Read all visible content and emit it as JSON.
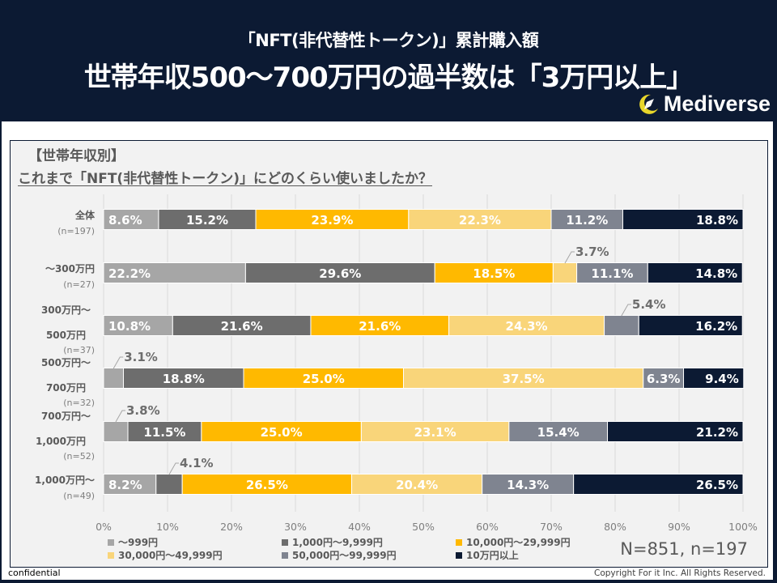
{
  "header": {
    "subtitle": "「NFT(非代替性トークン)」累計購入額",
    "title": "世帯年収500～700万円の過半数は「3万円以上」",
    "logo_text": "Mediverse",
    "logo_icon": "crescent-rocket-icon"
  },
  "question": {
    "tag": "【世帯年収別】",
    "text": "これまで「NFT(非代替性トークン)」にどのくらい使いましたか？"
  },
  "sample_note": "N=851, n=197",
  "footer": {
    "confidential": "confidential",
    "copyright": "Copyright For it Inc. All Rights Reserved."
  },
  "chart_data": {
    "type": "bar",
    "orientation": "horizontal",
    "stacked": "percent",
    "title": "これまで「NFT(非代替性トークン)」にどのくらい使いましたか？",
    "xlabel": "",
    "ylabel": "",
    "xlim": [
      0,
      100
    ],
    "x_ticks": [
      "0%",
      "10%",
      "20%",
      "30%",
      "40%",
      "50%",
      "60%",
      "70%",
      "80%",
      "90%",
      "100%"
    ],
    "grid": true,
    "legend_position": "bottom",
    "categories": [
      {
        "label_lines": [
          "全体"
        ],
        "n": "(n=197)"
      },
      {
        "label_lines": [
          "～300万円"
        ],
        "n": "(n=27)"
      },
      {
        "label_lines": [
          "300万円～",
          "500万円"
        ],
        "n": "(n=37)"
      },
      {
        "label_lines": [
          "500万円～",
          "700万円"
        ],
        "n": "(n=32)"
      },
      {
        "label_lines": [
          "700万円～",
          "1,000万円"
        ],
        "n": "(n=52)"
      },
      {
        "label_lines": [
          "1,000万円～"
        ],
        "n": "(n=49)"
      }
    ],
    "series": [
      {
        "name": "～999円",
        "color": "#a6a6a6",
        "values": [
          8.6,
          22.2,
          10.8,
          3.1,
          3.8,
          8.2
        ]
      },
      {
        "name": "1,000円～9,999円",
        "color": "#6d6d6d",
        "values": [
          15.2,
          29.6,
          21.6,
          18.8,
          11.5,
          4.1
        ]
      },
      {
        "name": "10,000円～29,999円",
        "color": "#ffb900",
        "values": [
          23.9,
          18.5,
          21.6,
          25.0,
          25.0,
          26.5
        ]
      },
      {
        "name": "30,000円～49,999円",
        "color": "#f9d57a",
        "values": [
          22.3,
          3.7,
          24.3,
          37.5,
          23.1,
          20.4
        ]
      },
      {
        "name": "50,000円～99,999円",
        "color": "#7f8490",
        "values": [
          11.2,
          11.1,
          5.4,
          6.3,
          15.4,
          14.3
        ]
      },
      {
        "name": "10万円以上",
        "color": "#0c1a33",
        "values": [
          18.8,
          14.8,
          16.2,
          9.4,
          21.2,
          26.5
        ]
      }
    ],
    "callouts": [
      {
        "row": 1,
        "series": 3,
        "label": "3.7%"
      },
      {
        "row": 2,
        "series": 4,
        "label": "5.4%"
      },
      {
        "row": 3,
        "series": 0,
        "label": "3.1%"
      },
      {
        "row": 4,
        "series": 0,
        "label": "3.8%"
      },
      {
        "row": 5,
        "series": 1,
        "label": "4.1%"
      }
    ]
  }
}
